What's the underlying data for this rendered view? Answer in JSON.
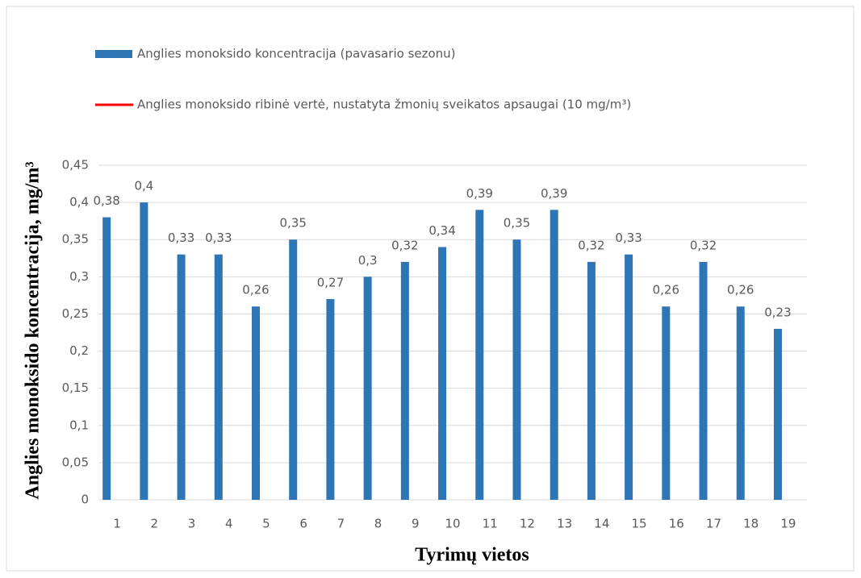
{
  "chart_data": {
    "type": "bar",
    "x_label": "Tyrimų vietos",
    "y_label": "Anglies monoksido koncentracija, mg/m³",
    "categories": [
      "1",
      "2",
      "3",
      "4",
      "5",
      "6",
      "7",
      "8",
      "9",
      "10",
      "11",
      "12",
      "13",
      "14",
      "15",
      "16",
      "17",
      "18",
      "19"
    ],
    "series": [
      {
        "name": "Anglies monoksido koncentracija (pavasario sezonu)",
        "color": "#2e75b6",
        "values": [
          0.38,
          0.4,
          0.33,
          0.33,
          0.26,
          0.35,
          0.27,
          0.3,
          0.32,
          0.34,
          0.39,
          0.35,
          0.39,
          0.32,
          0.33,
          0.26,
          0.32,
          0.26,
          0.23
        ],
        "value_labels": [
          "0,38",
          "0,4",
          "0,33",
          "0,33",
          "0,26",
          "0,35",
          "0,27",
          "0,3",
          "0,32",
          "0,34",
          "0,39",
          "0,35",
          "0,39",
          "0,32",
          "0,33",
          "0,26",
          "0,32",
          "0,26",
          "0,23"
        ]
      },
      {
        "name": "Anglies monoksido ribinė vertė, nustatyta žmonių sveikatos apsaugai (10 mg/m³)",
        "color": "#ff0000",
        "type": "line"
      }
    ],
    "ylim": [
      0,
      0.45
    ],
    "yticks": [
      0,
      {
        "value": 0.05,
        "label": "0,05"
      },
      {
        "value": 0.1,
        "label": "0,1"
      },
      {
        "value": 0.15,
        "label": "0,15"
      },
      {
        "value": 0.2,
        "label": "0,2"
      },
      {
        "value": 0.25,
        "label": "0,25"
      },
      {
        "value": 0.3,
        "label": "0,3"
      },
      {
        "value": 0.35,
        "label": "0,35"
      },
      {
        "value": 0.4,
        "label": "0,4"
      },
      {
        "value": 0.45,
        "label": "0,45"
      }
    ],
    "grid": true
  }
}
